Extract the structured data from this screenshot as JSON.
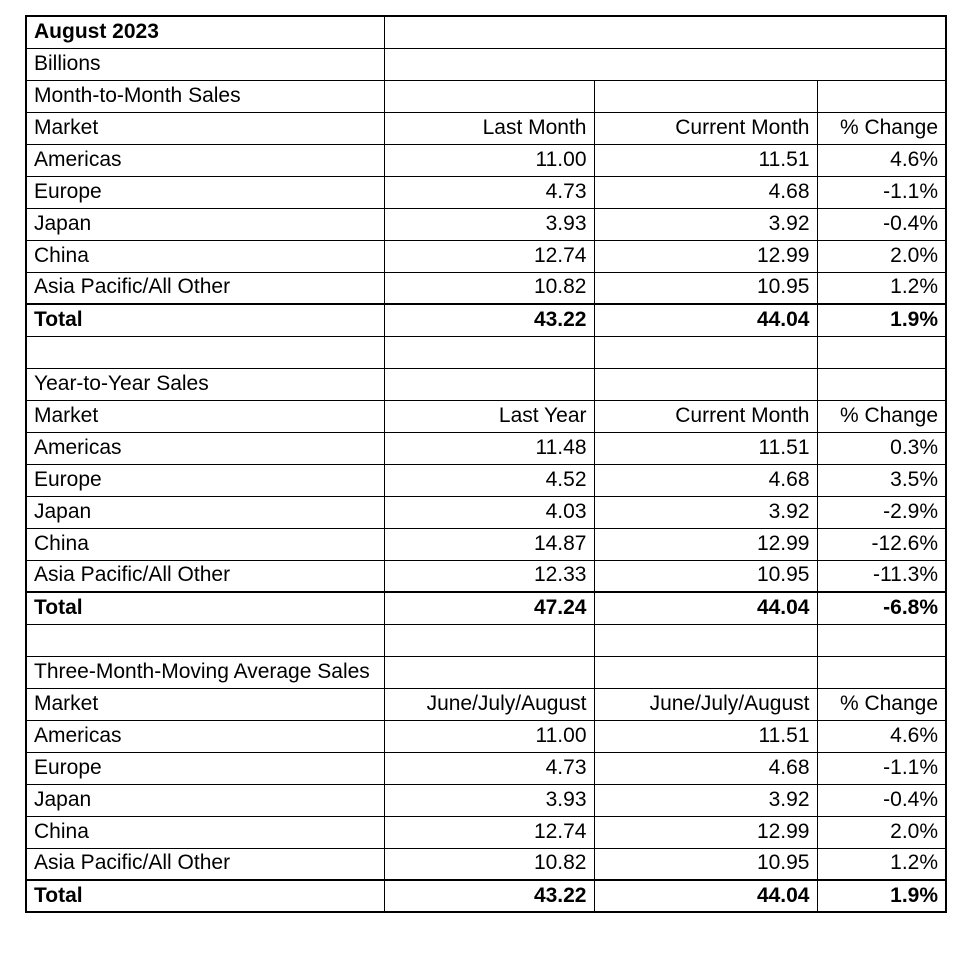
{
  "report": {
    "title": "August 2023",
    "units": "Billions",
    "market_header": "Market",
    "sections": [
      {
        "name": "Month-to-Month Sales",
        "columns": [
          "Last Month",
          "Current Month",
          "% Change"
        ],
        "rows": [
          [
            "Americas",
            "11.00",
            "11.51",
            "4.6%"
          ],
          [
            "Europe",
            "4.73",
            "4.68",
            "-1.1%"
          ],
          [
            "Japan",
            "3.93",
            "3.92",
            "-0.4%"
          ],
          [
            "China",
            "12.74",
            "12.99",
            "2.0%"
          ],
          [
            "Asia Pacific/All Other",
            "10.82",
            "10.95",
            "1.2%"
          ]
        ],
        "total": [
          "Total",
          "43.22",
          "44.04",
          "1.9%"
        ]
      },
      {
        "name": "Year-to-Year Sales",
        "columns": [
          "Last Year",
          "Current Month",
          "% Change"
        ],
        "rows": [
          [
            "Americas",
            "11.48",
            "11.51",
            "0.3%"
          ],
          [
            "Europe",
            "4.52",
            "4.68",
            "3.5%"
          ],
          [
            "Japan",
            "4.03",
            "3.92",
            "-2.9%"
          ],
          [
            "China",
            "14.87",
            "12.99",
            "-12.6%"
          ],
          [
            "Asia Pacific/All Other",
            "12.33",
            "10.95",
            "-11.3%"
          ]
        ],
        "total": [
          "Total",
          "47.24",
          "44.04",
          "-6.8%"
        ]
      },
      {
        "name": "Three-Month-Moving Average Sales",
        "columns": [
          "June/July/August",
          "June/July/August",
          "% Change"
        ],
        "rows": [
          [
            "Americas",
            "11.00",
            "11.51",
            "4.6%"
          ],
          [
            "Europe",
            "4.73",
            "4.68",
            "-1.1%"
          ],
          [
            "Japan",
            "3.93",
            "3.92",
            "-0.4%"
          ],
          [
            "China",
            "12.74",
            "12.99",
            "2.0%"
          ],
          [
            "Asia Pacific/All Other",
            "10.82",
            "10.95",
            "1.2%"
          ]
        ],
        "total": [
          "Total",
          "43.22",
          "44.04",
          "1.9%"
        ]
      }
    ]
  },
  "colors": {
    "background": "#ffffff",
    "text": "#000000",
    "border": "#000000"
  }
}
